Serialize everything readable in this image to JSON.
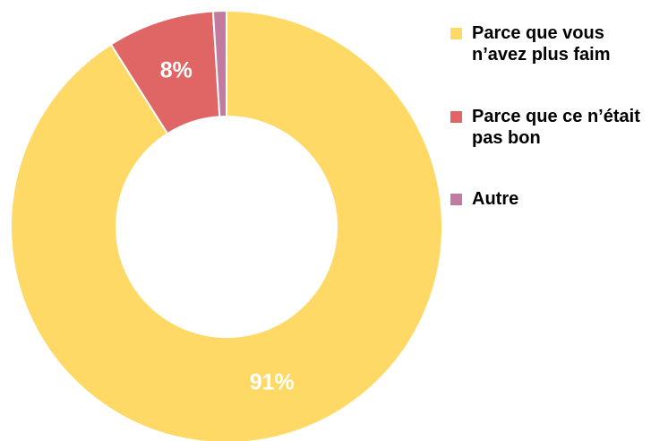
{
  "chart_data": {
    "type": "donut",
    "categories": [
      "Parce que vous n’avez plus faim",
      "Parce que ce n’était pas bon",
      "Autre"
    ],
    "values": [
      91,
      8,
      1
    ],
    "value_labels": [
      "91%",
      "8%",
      null
    ],
    "colors": [
      "#FFD966",
      "#E06666",
      "#C27BA0"
    ],
    "legend": "right"
  }
}
